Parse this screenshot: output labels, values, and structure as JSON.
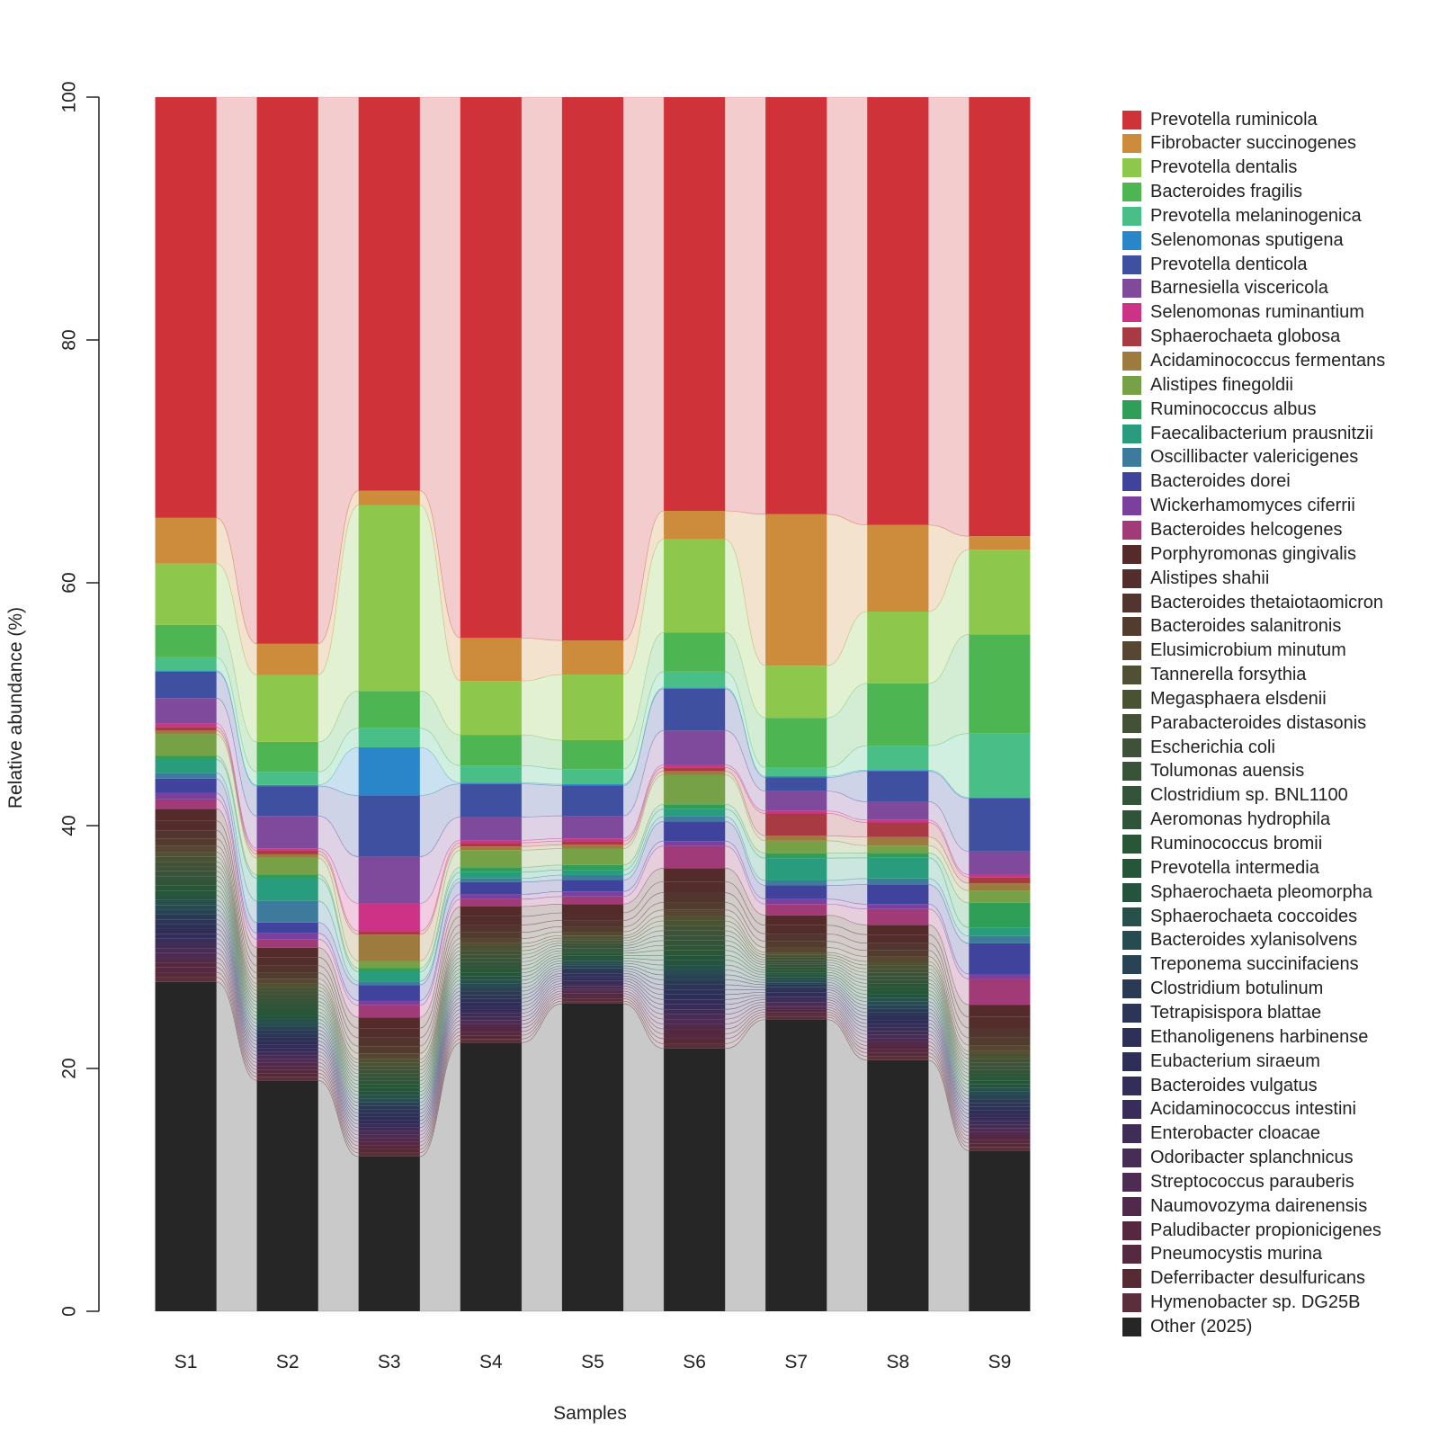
{
  "chart_data": {
    "type": "bar",
    "stacked": true,
    "flow_ribbons": true,
    "xlabel": "Samples",
    "ylabel": "Relative abundance (%)",
    "ylim": [
      0,
      100
    ],
    "yticks": [
      0,
      20,
      40,
      60,
      80,
      100
    ],
    "categories": [
      "S1",
      "S2",
      "S3",
      "S4",
      "S5",
      "S6",
      "S7",
      "S8",
      "S9"
    ],
    "legend_position": "right",
    "series": [
      {
        "name": "Other (2025)",
        "color": "#262626",
        "values": [
          27.4,
          19.3,
          12.9,
          21.9,
          24.4,
          21.4,
          23.5,
          20.6,
          13.1
        ]
      },
      {
        "name": "Hymenobacter sp. DG25B",
        "color": "#5a2e3a",
        "values": [
          0.4,
          0.3,
          0.3,
          0.3,
          0.2,
          0.4,
          0.2,
          0.3,
          0.3
        ]
      },
      {
        "name": "Deferribacter desulfuricans",
        "color": "#562b36",
        "values": [
          0.4,
          0.3,
          0.3,
          0.3,
          0.2,
          0.4,
          0.2,
          0.3,
          0.3
        ]
      },
      {
        "name": "Pneumocystis murina",
        "color": "#552a40",
        "values": [
          0.4,
          0.3,
          0.3,
          0.3,
          0.2,
          0.4,
          0.2,
          0.3,
          0.3
        ]
      },
      {
        "name": "Paludibacter propionicigenes",
        "color": "#55283f",
        "values": [
          0.4,
          0.3,
          0.3,
          0.3,
          0.2,
          0.4,
          0.2,
          0.3,
          0.3
        ]
      },
      {
        "name": "Naumovozyma dairenensis",
        "color": "#512a4b",
        "values": [
          0.4,
          0.3,
          0.3,
          0.3,
          0.2,
          0.4,
          0.2,
          0.3,
          0.3
        ]
      },
      {
        "name": "Streptococcus parauberis",
        "color": "#4d2b52",
        "values": [
          0.4,
          0.3,
          0.3,
          0.3,
          0.2,
          0.4,
          0.2,
          0.3,
          0.3
        ]
      },
      {
        "name": "Odoribacter splanchnicus",
        "color": "#472c55",
        "values": [
          0.4,
          0.3,
          0.3,
          0.3,
          0.2,
          0.4,
          0.2,
          0.3,
          0.3
        ]
      },
      {
        "name": "Enterobacter cloacae",
        "color": "#3f2d56",
        "values": [
          0.4,
          0.3,
          0.3,
          0.3,
          0.2,
          0.4,
          0.2,
          0.3,
          0.3
        ]
      },
      {
        "name": "Acidaminococcus intestini",
        "color": "#382c58",
        "values": [
          0.4,
          0.3,
          0.3,
          0.3,
          0.2,
          0.4,
          0.2,
          0.3,
          0.3
        ]
      },
      {
        "name": "Bacteroides vulgatus",
        "color": "#332d59",
        "values": [
          0.4,
          0.3,
          0.3,
          0.3,
          0.2,
          0.4,
          0.2,
          0.3,
          0.3
        ]
      },
      {
        "name": "Eubacterium siraeum",
        "color": "#2e2e58",
        "values": [
          0.4,
          0.3,
          0.3,
          0.3,
          0.2,
          0.4,
          0.2,
          0.3,
          0.3
        ]
      },
      {
        "name": "Ethanoligenens harbinense",
        "color": "#2d3057",
        "values": [
          0.4,
          0.3,
          0.3,
          0.3,
          0.2,
          0.4,
          0.2,
          0.3,
          0.3
        ]
      },
      {
        "name": "Tetrapisispora blattae",
        "color": "#2c3556",
        "values": [
          0.4,
          0.3,
          0.3,
          0.3,
          0.2,
          0.4,
          0.2,
          0.3,
          0.3
        ]
      },
      {
        "name": "Clostridium botulinum",
        "color": "#2b3a54",
        "values": [
          0.4,
          0.3,
          0.3,
          0.3,
          0.2,
          0.4,
          0.2,
          0.3,
          0.3
        ]
      },
      {
        "name": "Treponema succinifaciens",
        "color": "#284454",
        "values": [
          0.4,
          0.3,
          0.3,
          0.3,
          0.2,
          0.4,
          0.2,
          0.3,
          0.3
        ]
      },
      {
        "name": "Bacteroides xylanisolvens",
        "color": "#264b50",
        "values": [
          0.4,
          0.3,
          0.3,
          0.3,
          0.2,
          0.4,
          0.2,
          0.3,
          0.3
        ]
      },
      {
        "name": "Sphaerochaeta coccoides",
        "color": "#27504a",
        "values": [
          0.4,
          0.3,
          0.3,
          0.3,
          0.2,
          0.4,
          0.2,
          0.3,
          0.3
        ]
      },
      {
        "name": "Sphaerochaeta pleomorpha",
        "color": "#26533f",
        "values": [
          0.4,
          0.3,
          0.3,
          0.3,
          0.2,
          0.4,
          0.2,
          0.3,
          0.3
        ]
      },
      {
        "name": "Prevotella intermedia",
        "color": "#25563a",
        "values": [
          0.4,
          0.3,
          0.3,
          0.3,
          0.2,
          0.4,
          0.2,
          0.3,
          0.3
        ]
      },
      {
        "name": "Ruminococcus bromii",
        "color": "#2a5638",
        "values": [
          0.4,
          0.3,
          0.3,
          0.3,
          0.2,
          0.4,
          0.2,
          0.3,
          0.3
        ]
      },
      {
        "name": "Aeromonas hydrophila",
        "color": "#2e5538",
        "values": [
          0.4,
          0.3,
          0.3,
          0.3,
          0.2,
          0.4,
          0.2,
          0.3,
          0.3
        ]
      },
      {
        "name": "Clostridium sp. BNL1100",
        "color": "#335438",
        "values": [
          0.4,
          0.3,
          0.3,
          0.3,
          0.2,
          0.4,
          0.2,
          0.3,
          0.3
        ]
      },
      {
        "name": "Tolumonas auensis",
        "color": "#385338",
        "values": [
          0.4,
          0.3,
          0.3,
          0.3,
          0.2,
          0.4,
          0.2,
          0.3,
          0.3
        ]
      },
      {
        "name": "Escherichia coli",
        "color": "#3d5238",
        "values": [
          0.4,
          0.3,
          0.3,
          0.3,
          0.2,
          0.4,
          0.2,
          0.3,
          0.3
        ]
      },
      {
        "name": "Parabacteroides distasonis",
        "color": "#435237",
        "values": [
          0.4,
          0.3,
          0.3,
          0.3,
          0.2,
          0.4,
          0.2,
          0.3,
          0.3
        ]
      },
      {
        "name": "Megasphaera elsdenii",
        "color": "#4a5234",
        "values": [
          0.4,
          0.3,
          0.3,
          0.3,
          0.2,
          0.4,
          0.2,
          0.3,
          0.3
        ]
      },
      {
        "name": "Tannerella forsythia",
        "color": "#505034",
        "values": [
          0.4,
          0.3,
          0.3,
          0.3,
          0.2,
          0.4,
          0.2,
          0.3,
          0.3
        ]
      },
      {
        "name": "Elusimicrobium minutum",
        "color": "#574732",
        "values": [
          0.5,
          0.4,
          0.5,
          0.4,
          0.3,
          0.5,
          0.4,
          0.4,
          0.5
        ]
      },
      {
        "name": "Bacteroides salanitronis",
        "color": "#523c2e",
        "values": [
          0.6,
          0.5,
          0.6,
          0.5,
          0.4,
          0.6,
          0.5,
          0.5,
          0.6
        ]
      },
      {
        "name": "Bacteroides thetaiotaomicron",
        "color": "#52352e",
        "values": [
          0.7,
          0.6,
          0.7,
          0.6,
          0.5,
          0.8,
          0.6,
          0.6,
          0.8
        ]
      },
      {
        "name": "Alistipes shahii",
        "color": "#532d2c",
        "values": [
          0.8,
          0.7,
          0.8,
          0.7,
          0.6,
          0.9,
          0.7,
          0.7,
          0.9
        ]
      },
      {
        "name": "Porphyromonas gingivalis",
        "color": "#552a2a",
        "values": [
          1.0,
          0.8,
          0.9,
          0.8,
          0.7,
          1.1,
          0.8,
          0.8,
          1.0
        ]
      },
      {
        "name": "Bacteroides helcogenes",
        "color": "#a13b78",
        "values": [
          0.8,
          0.7,
          1.0,
          0.6,
          0.6,
          1.8,
          0.9,
          1.3,
          2.1
        ]
      },
      {
        "name": "Wickerhamomyces ciferrii",
        "color": "#7b3f9d",
        "values": [
          0.5,
          0.5,
          0.4,
          0.4,
          0.4,
          0.4,
          0.4,
          0.4,
          0.4
        ]
      },
      {
        "name": "Bacteroides dorei",
        "color": "#3f439c",
        "values": [
          1.2,
          0.9,
          1.3,
          1.0,
          0.9,
          1.6,
          1.1,
          1.6,
          2.5
        ]
      },
      {
        "name": "Oscillibacter valericigenes",
        "color": "#3d7a9c",
        "values": [
          0.5,
          1.8,
          0.3,
          0.3,
          0.4,
          0.4,
          0.4,
          0.5,
          0.6
        ]
      },
      {
        "name": "Faecalibacterium prausnitzii",
        "color": "#2a9c7e",
        "values": [
          1.1,
          1.9,
          0.8,
          0.5,
          0.4,
          0.6,
          1.8,
          1.7,
          0.7
        ]
      },
      {
        "name": "Ruminococcus albus",
        "color": "#2f9f57",
        "values": [
          0.3,
          0.3,
          0.3,
          0.4,
          0.4,
          0.4,
          0.4,
          0.4,
          2.0
        ]
      },
      {
        "name": "Alistipes finegoldii",
        "color": "#76a147",
        "values": [
          1.8,
          1.4,
          0.6,
          1.4,
          1.3,
          2.4,
          1.0,
          0.6,
          1.0
        ]
      },
      {
        "name": "Acidaminococcus fermentans",
        "color": "#9d7a3e",
        "values": [
          0.3,
          0.3,
          2.2,
          0.3,
          0.3,
          0.3,
          0.4,
          0.7,
          0.6
        ]
      },
      {
        "name": "Sphaerochaeta globosa",
        "color": "#a83a44",
        "values": [
          0.3,
          0.3,
          0.3,
          0.3,
          0.3,
          0.3,
          1.8,
          1.2,
          0.5
        ]
      },
      {
        "name": "Selenomonas ruminantium",
        "color": "#cc3286",
        "values": [
          0.3,
          0.2,
          2.3,
          0.2,
          0.2,
          0.2,
          0.2,
          0.2,
          0.2
        ]
      },
      {
        "name": "Barnesiella viscericola",
        "color": "#7f4a9b",
        "values": [
          2.1,
          2.7,
          3.9,
          1.9,
          1.8,
          2.8,
          1.6,
          1.5,
          1.9
        ]
      },
      {
        "name": "Prevotella denticola",
        "color": "#4050a0",
        "values": [
          2.2,
          2.5,
          5.1,
          2.7,
          2.4,
          3.4,
          1.1,
          2.5,
          4.3
        ]
      },
      {
        "name": "Selenomonas sputigena",
        "color": "#2a86c8",
        "values": [
          0.1,
          0.1,
          4.0,
          0.1,
          0.1,
          0.1,
          0.1,
          0.1,
          0.1
        ]
      },
      {
        "name": "Prevotella melaninogenica",
        "color": "#49bf87",
        "values": [
          1.1,
          1.1,
          1.6,
          1.4,
          1.2,
          1.3,
          0.7,
          2.0,
          5.2
        ]
      },
      {
        "name": "Bacteroides fragilis",
        "color": "#4db652",
        "values": [
          2.7,
          2.5,
          3.1,
          2.5,
          2.3,
          3.2,
          4.0,
          5.1,
          8.1
        ]
      },
      {
        "name": "Prevotella dentalis",
        "color": "#8dc74c",
        "values": [
          5.1,
          5.6,
          15.5,
          4.4,
          5.2,
          7.6,
          4.2,
          5.9,
          6.9
        ]
      },
      {
        "name": "Fibrobacter succinogenes",
        "color": "#cc8c3c",
        "values": [
          3.8,
          2.6,
          1.2,
          3.5,
          2.7,
          2.3,
          12.2,
          7.1,
          1.1
        ]
      },
      {
        "name": "Prevotella ruminicola",
        "color": "#cf3339",
        "values": [
          35.0,
          45.7,
          32.8,
          44.1,
          43.1,
          33.7,
          33.6,
          35.1,
          35.8
        ]
      }
    ]
  },
  "legend": {
    "items": [
      "Prevotella ruminicola",
      "Fibrobacter succinogenes",
      "Prevotella dentalis",
      "Bacteroides fragilis",
      "Prevotella melaninogenica",
      "Selenomonas sputigena",
      "Prevotella denticola",
      "Barnesiella viscericola",
      "Selenomonas ruminantium",
      "Sphaerochaeta globosa",
      "Acidaminococcus fermentans",
      "Alistipes finegoldii",
      "Ruminococcus albus",
      "Faecalibacterium prausnitzii",
      "Oscillibacter valericigenes",
      "Bacteroides dorei",
      "Wickerhamomyces ciferrii",
      "Bacteroides helcogenes",
      "Porphyromonas gingivalis",
      "Alistipes shahii",
      "Bacteroides thetaiotaomicron",
      "Bacteroides salanitronis",
      "Elusimicrobium minutum",
      "Tannerella forsythia",
      "Megasphaera elsdenii",
      "Parabacteroides distasonis",
      "Escherichia coli",
      "Tolumonas auensis",
      "Clostridium sp. BNL1100",
      "Aeromonas hydrophila",
      "Ruminococcus bromii",
      "Prevotella intermedia",
      "Sphaerochaeta pleomorpha",
      "Sphaerochaeta coccoides",
      "Bacteroides xylanisolvens",
      "Treponema succinifaciens",
      "Clostridium botulinum",
      "Tetrapisispora blattae",
      "Ethanoligenens harbinense",
      "Eubacterium siraeum",
      "Bacteroides vulgatus",
      "Acidaminococcus intestini",
      "Enterobacter cloacae",
      "Odoribacter splanchnicus",
      "Streptococcus parauberis",
      "Naumovozyma dairenensis",
      "Paludibacter propionicigenes",
      "Pneumocystis murina",
      "Deferribacter desulfuricans",
      "Hymenobacter sp. DG25B",
      "Other (2025)"
    ]
  }
}
